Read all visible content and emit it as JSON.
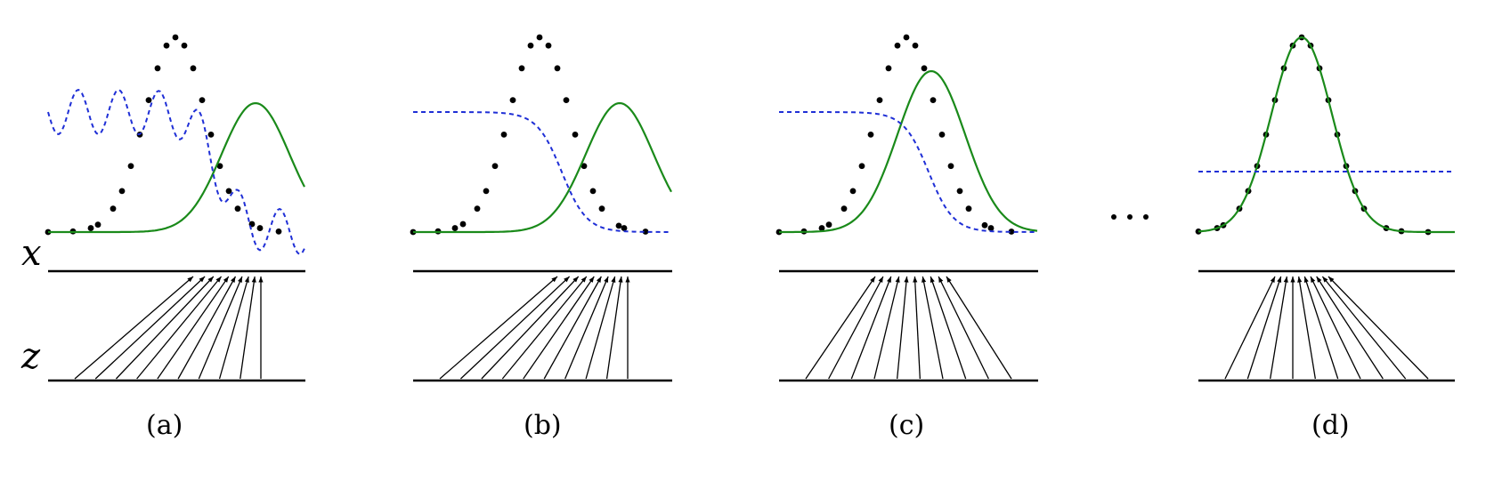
{
  "axis_labels": {
    "x": "x",
    "z": "z"
  },
  "panels": [
    {
      "caption": "(a)",
      "stage": "initial",
      "generator_offset": 90,
      "discriminator": "oscillating"
    },
    {
      "caption": "(b)",
      "stage": "discriminator-updated",
      "generator_offset": 90,
      "discriminator": "sigmoid"
    },
    {
      "caption": "(c)",
      "stage": "generator-updated",
      "generator_offset": 28,
      "discriminator": "sigmoid"
    },
    {
      "caption": "(d)",
      "stage": "converged",
      "generator_offset": 0,
      "discriminator": "flat"
    }
  ],
  "ellipsis": "...",
  "legend_semantics": {
    "data_distribution": "black dots",
    "generator_distribution": "green solid line",
    "discriminator": "blue dashed line"
  },
  "colors": {
    "data": "#000000",
    "generator": "#1a8a1a",
    "discriminator": "#1f2fd6"
  }
}
